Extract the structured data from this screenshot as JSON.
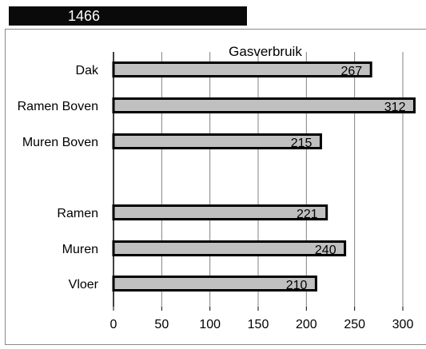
{
  "sheet": {
    "cell_value": "1466"
  },
  "chart_data": {
    "type": "bar",
    "orientation": "horizontal",
    "title": "Gasverbruik",
    "categories": [
      "Dak",
      "Ramen Boven",
      "Muren Boven",
      "",
      "Ramen",
      "Muren",
      "Vloer"
    ],
    "values": [
      267,
      312,
      215,
      null,
      221,
      240,
      210
    ],
    "data_labels": [
      "267",
      "312",
      "215",
      "",
      "221",
      "240",
      "210"
    ],
    "xlim": [
      0,
      300
    ],
    "x_ticks": [
      "0",
      "50",
      "100",
      "150",
      "200",
      "250",
      "300"
    ],
    "grid": true,
    "legend": "none",
    "colors": {
      "bar_fill": "#c0c0c0",
      "bar_stroke": "#000000",
      "grid": "#808080",
      "cell_bg": "#0a0a0a",
      "cell_text": "#ffffff"
    }
  }
}
